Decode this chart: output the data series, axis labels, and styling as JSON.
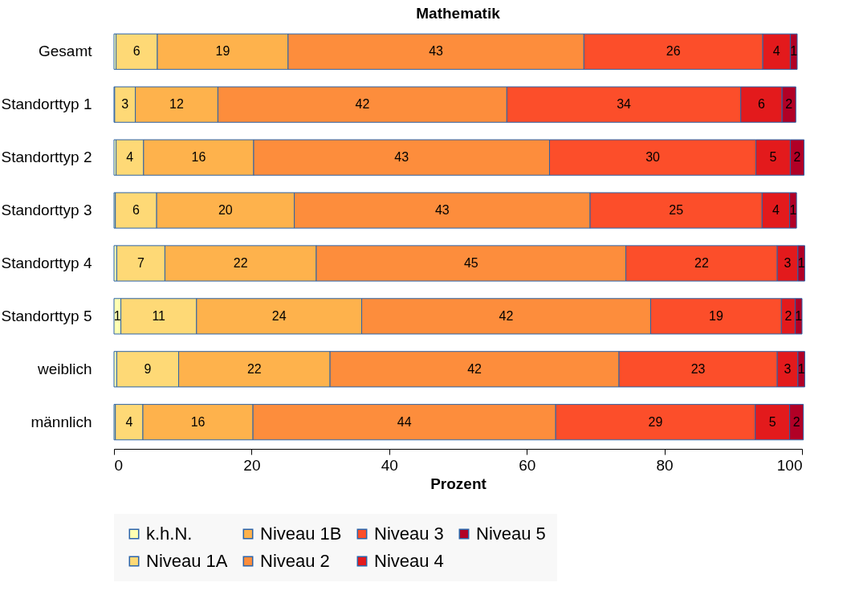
{
  "chart_data": {
    "type": "bar",
    "orientation": "horizontal",
    "stacked": true,
    "title": "Mathematik",
    "xlabel": "Prozent",
    "categories": [
      "Gesamt",
      "Standorttyp 1",
      "Standorttyp 2",
      "Standorttyp 3",
      "Standorttyp 4",
      "Standorttyp 5",
      "weiblich",
      "männlich"
    ],
    "series": [
      {
        "name": "k.h.N.",
        "color": "#ffffb2",
        "values": [
          0.3,
          0.1,
          0.3,
          0.2,
          0.4,
          1,
          0.4,
          0.2
        ],
        "value_labels": [
          null,
          null,
          null,
          null,
          null,
          "1",
          null,
          null
        ]
      },
      {
        "name": "Niveau 1A",
        "color": "#fed976",
        "values": [
          6,
          3,
          4,
          6,
          7,
          11,
          9,
          4
        ],
        "value_labels": [
          "6",
          "3",
          "4",
          "6",
          "7",
          "11",
          "9",
          "4"
        ]
      },
      {
        "name": "Niveau 1B",
        "color": "#feb24c",
        "values": [
          19,
          12,
          16,
          20,
          22,
          24,
          22,
          16
        ],
        "value_labels": [
          "19",
          "12",
          "16",
          "20",
          "22",
          "24",
          "22",
          "16"
        ]
      },
      {
        "name": "Niveau 2",
        "color": "#fd8d3c",
        "values": [
          43,
          42,
          43,
          43,
          45,
          42,
          42,
          44
        ],
        "value_labels": [
          "43",
          "42",
          "43",
          "43",
          "45",
          "42",
          "42",
          "44"
        ]
      },
      {
        "name": "Niveau 3",
        "color": "#fc4e2a",
        "values": [
          26,
          34,
          30,
          25,
          22,
          19,
          23,
          29
        ],
        "value_labels": [
          "26",
          "34",
          "30",
          "25",
          "22",
          "19",
          "23",
          "29"
        ]
      },
      {
        "name": "Niveau 4",
        "color": "#e31a1c",
        "values": [
          4,
          6,
          5,
          4,
          3,
          2,
          3,
          5
        ],
        "value_labels": [
          "4",
          "6",
          "5",
          "4",
          "3",
          "2",
          "3",
          "5"
        ]
      },
      {
        "name": "Niveau 5",
        "color": "#b10026",
        "values": [
          1,
          2,
          2,
          1,
          1,
          1,
          1,
          2
        ],
        "value_labels": [
          "1",
          "2",
          "2",
          "1",
          "1",
          "1",
          "1",
          "2"
        ]
      }
    ],
    "xlim": [
      0,
      100
    ],
    "xticks": [
      0,
      20,
      40,
      60,
      80,
      100
    ],
    "grid": false,
    "legend": "bottom"
  }
}
